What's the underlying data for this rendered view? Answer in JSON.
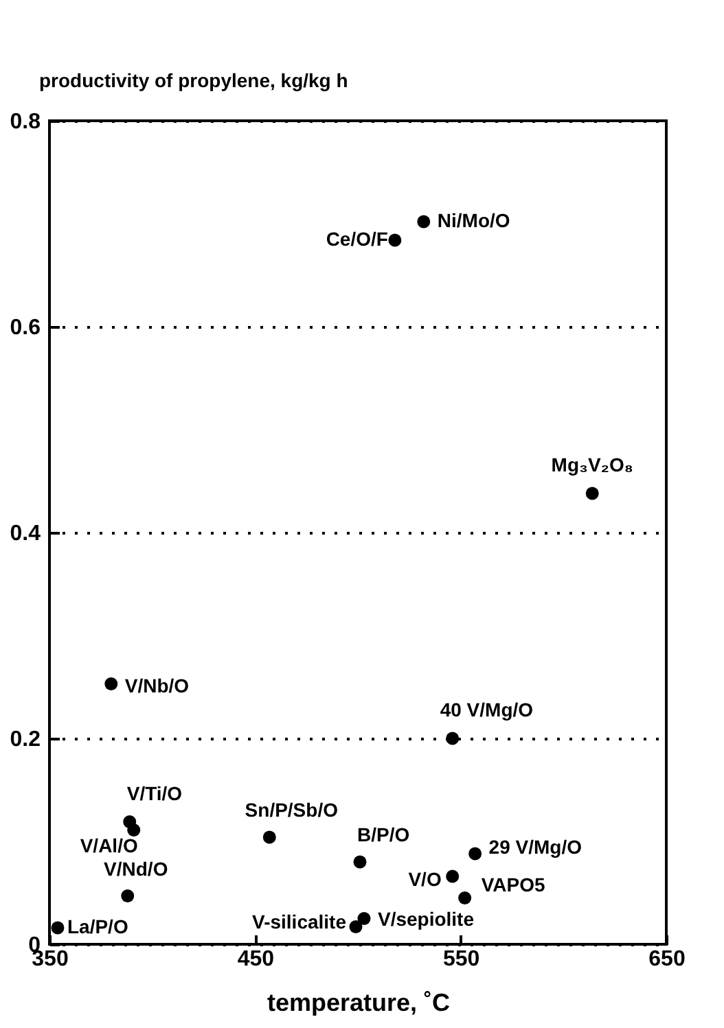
{
  "chart_data": {
    "type": "scatter",
    "xlabel": "temperature, ˚C",
    "ylabel": "productivity of propylene, kg/kg h",
    "x": [
      532,
      518,
      614,
      380,
      546,
      389,
      391,
      457,
      501,
      557,
      546,
      552,
      388,
      354,
      499,
      503
    ],
    "series": [
      {
        "color": "#000000",
        "values": [
          0.702,
          0.684,
          0.438,
          0.253,
          0.2,
          0.119,
          0.111,
          0.104,
          0.08,
          0.088,
          0.066,
          0.045,
          0.047,
          0.016,
          0.017,
          0.025
        ]
      }
    ],
    "xlim": [
      350,
      650
    ],
    "xticks": [
      350,
      450,
      550,
      650
    ],
    "ylim": [
      0,
      0.8
    ],
    "yticks": [
      0,
      0.2,
      0.4,
      0.6,
      0.8
    ],
    "grid": "y",
    "marker": "circle",
    "annotations": [
      {
        "text": "Ni/Mo/O",
        "x": 532,
        "y": 0.702
      },
      {
        "text": "Ce/O/F",
        "x": 518,
        "y": 0.684
      },
      {
        "text": "Mg₃V₂O₈",
        "x": 614,
        "y": 0.438
      },
      {
        "text": "V/Nb/O",
        "x": 380,
        "y": 0.253
      },
      {
        "text": "40 V/Mg/O",
        "x": 546,
        "y": 0.2
      },
      {
        "text": "V/Ti/O",
        "x": 389,
        "y": 0.119
      },
      {
        "text": "V/Al/O",
        "x": 391,
        "y": 0.111
      },
      {
        "text": "Sn/P/Sb/O",
        "x": 457,
        "y": 0.104
      },
      {
        "text": "B/P/O",
        "x": 501,
        "y": 0.08
      },
      {
        "text": "29 V/Mg/O",
        "x": 557,
        "y": 0.088
      },
      {
        "text": "V/O",
        "x": 546,
        "y": 0.066
      },
      {
        "text": "VAPO5",
        "x": 552,
        "y": 0.045
      },
      {
        "text": "V/Nd/O",
        "x": 388,
        "y": 0.047
      },
      {
        "text": "La/P/O",
        "x": 354,
        "y": 0.016
      },
      {
        "text": "V-silicalite",
        "x": 499,
        "y": 0.017
      },
      {
        "text": "V/sepiolite",
        "x": 503,
        "y": 0.025
      }
    ]
  }
}
